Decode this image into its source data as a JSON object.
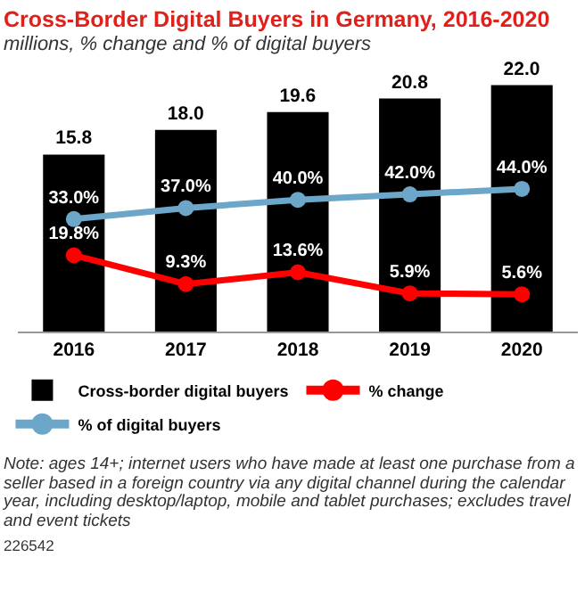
{
  "chart_data": {
    "type": "bar",
    "title": "Cross-Border Digital Buyers in Germany, 2016-2020",
    "subtitle": "millions, % change and % of digital buyers",
    "categories": [
      "2016",
      "2017",
      "2018",
      "2019",
      "2020"
    ],
    "series": [
      {
        "name": "Cross-border digital buyers",
        "color": "#000000",
        "values": [
          15.8,
          18.0,
          19.6,
          20.8,
          22.0
        ],
        "value_labels": [
          "15.8",
          "18.0",
          "19.6",
          "20.8",
          "22.0"
        ]
      },
      {
        "name": "% change",
        "type": "line",
        "axis": "y2",
        "color": "#ff0000",
        "values": [
          19.8,
          9.3,
          13.6,
          5.9,
          5.6
        ],
        "value_labels": [
          "19.8%",
          "9.3%",
          "13.6%",
          "5.9%",
          "5.6%"
        ]
      },
      {
        "name": "% of digital buyers",
        "type": "line",
        "axis": "y2",
        "color": "#6ca6c9",
        "values": [
          33.0,
          37.0,
          40.0,
          42.0,
          44.0
        ],
        "value_labels": [
          "33.0%",
          "37.0%",
          "40.0%",
          "42.0%",
          "44.0%"
        ]
      }
    ],
    "marker": "circle",
    "legend": "bottom",
    "grid": false,
    "annotations": [
      "Note: ages 14+; internet users who have made at least one purchase from a seller based in a foreign country via any digital channel during the calendar year, including desktop/laptop, mobile and tablet purchases; excludes travel and event tickets",
      "226542"
    ]
  }
}
